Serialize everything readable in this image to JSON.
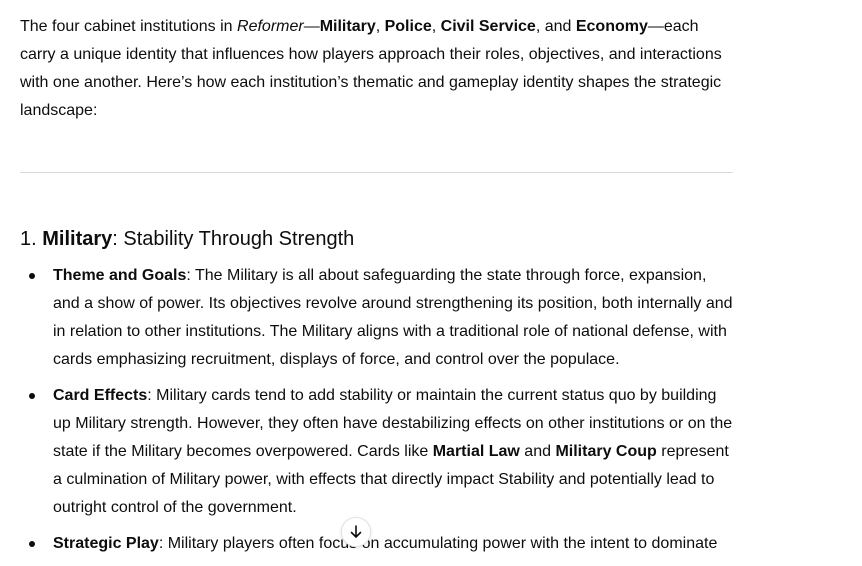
{
  "intro": {
    "t1": "The four cabinet institutions in ",
    "game": "Reformer",
    "dash1": "—",
    "inst1": "Military",
    "c1": ", ",
    "inst2": "Police",
    "c2": ", ",
    "inst3": "Civil Service",
    "c3": ", and ",
    "inst4": "Economy",
    "t2": "—each carry a unique identity that influences how players approach their roles, objectives, and interactions with one another. Here’s how each institution’s thematic and gameplay identity shapes the strategic landscape:"
  },
  "section": {
    "number": "1. ",
    "name": "Military",
    "subtitle": ": Stability Through Strength"
  },
  "points": [
    {
      "label": "Theme and Goals",
      "text": ": The Military is all about safeguarding the state through force, expansion, and a show of power. Its objectives revolve around strengthening its position, both internally and in relation to other institutions. The Military aligns with a traditional role of national defense, with cards emphasizing recruitment, displays of force, and control over the populace."
    },
    {
      "label": "Card Effects",
      "text_a": ": Military cards tend to add stability or maintain the current status quo by building up Military strength. However, they often have destabilizing effects on other institutions or on the state if the Military becomes overpowered. Cards like ",
      "card1": "Martial Law",
      "text_b": " and ",
      "card2": "Military Coup",
      "text_c": " represent a culmination of Military power, with effects that directly impact Stability and potentially lead to outright control of the government."
    },
    {
      "label": "Strategic Play",
      "text": ": Military players often focus on accumulating power with the intent to dominate"
    }
  ],
  "icons": {
    "scroll_down": "arrow-down-icon"
  }
}
